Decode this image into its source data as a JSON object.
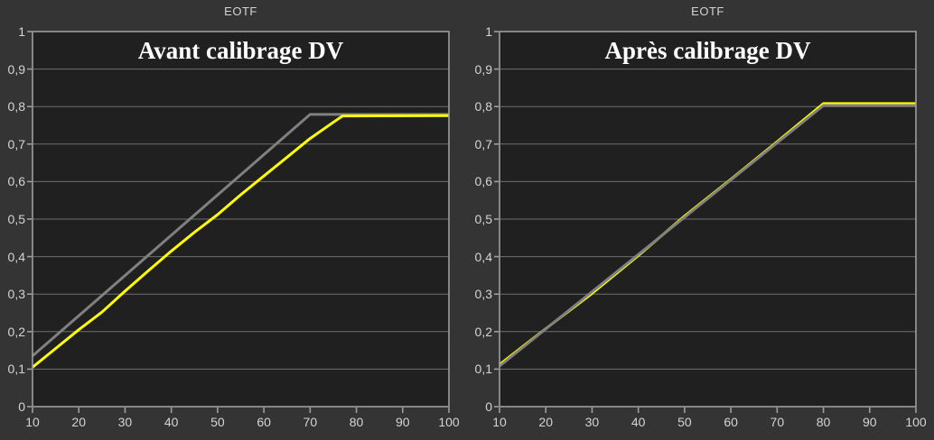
{
  "colors": {
    "background": "#343434",
    "plot_background": "#202020",
    "grid": "#6f6f6f",
    "axis": "#9e9e9e",
    "tick_label": "#d4d4d4",
    "title": "#ffffff",
    "reference_line": "#808080",
    "measured_line": "#ffff00"
  },
  "chart_data": [
    {
      "type": "line",
      "title": "EOTF",
      "inner_title": "Avant calibrage DV",
      "xlim": [
        10,
        100
      ],
      "ylim": [
        0,
        1
      ],
      "x_ticks": [
        10,
        20,
        30,
        40,
        50,
        60,
        70,
        80,
        90,
        100
      ],
      "x_tick_labels": [
        "10",
        "20",
        "30",
        "40",
        "50",
        "60",
        "70",
        "80",
        "90",
        "100"
      ],
      "y_ticks": [
        0,
        0.1,
        0.2,
        0.3,
        0.4,
        0.5,
        0.6,
        0.7,
        0.8,
        0.9,
        1
      ],
      "y_tick_labels": [
        "0",
        "0,1",
        "0,2",
        "0,3",
        "0,4",
        "0,5",
        "0,6",
        "0,7",
        "0,8",
        "0,9",
        "1"
      ],
      "grid": "horizontal",
      "legend": "none",
      "series": [
        {
          "name": "reference-eotf",
          "color": "#808080",
          "width": 3,
          "points": [
            [
              10,
              0.135
            ],
            [
              70,
              0.779
            ],
            [
              100,
              0.779
            ]
          ]
        },
        {
          "name": "measured-eotf",
          "color": "#ffff00",
          "width": 3,
          "points": [
            [
              10,
              0.105
            ],
            [
              15,
              0.155
            ],
            [
              20,
              0.205
            ],
            [
              25,
              0.252
            ],
            [
              30,
              0.308
            ],
            [
              35,
              0.362
            ],
            [
              40,
              0.415
            ],
            [
              45,
              0.465
            ],
            [
              50,
              0.512
            ],
            [
              55,
              0.565
            ],
            [
              60,
              0.615
            ],
            [
              65,
              0.665
            ],
            [
              70,
              0.715
            ],
            [
              75,
              0.758
            ],
            [
              77,
              0.775
            ],
            [
              100,
              0.776
            ]
          ]
        }
      ]
    },
    {
      "type": "line",
      "title": "EOTF",
      "inner_title": "Après calibrage DV",
      "xlim": [
        10,
        100
      ],
      "ylim": [
        0,
        1
      ],
      "x_ticks": [
        10,
        20,
        30,
        40,
        50,
        60,
        70,
        80,
        90,
        100
      ],
      "x_tick_labels": [
        "10",
        "20",
        "30",
        "40",
        "50",
        "60",
        "70",
        "80",
        "90",
        "100"
      ],
      "y_ticks": [
        0,
        0.1,
        0.2,
        0.3,
        0.4,
        0.5,
        0.6,
        0.7,
        0.8,
        0.9,
        1
      ],
      "y_tick_labels": [
        "0",
        "0,1",
        "0,2",
        "0,3",
        "0,4",
        "0,5",
        "0,6",
        "0,7",
        "0,8",
        "0,9",
        "1"
      ],
      "grid": "horizontal",
      "legend": "none",
      "series": [
        {
          "name": "measured-eotf",
          "color": "#ffff00",
          "width": 3,
          "points": [
            [
              10,
              0.112
            ],
            [
              20,
              0.208
            ],
            [
              30,
              0.302
            ],
            [
              40,
              0.403
            ],
            [
              50,
              0.508
            ],
            [
              60,
              0.606
            ],
            [
              70,
              0.706
            ],
            [
              80,
              0.808
            ],
            [
              100,
              0.808
            ]
          ]
        },
        {
          "name": "reference-eotf",
          "color": "#808080",
          "width": 3,
          "points": [
            [
              10,
              0.108
            ],
            [
              80,
              0.803
            ],
            [
              100,
              0.803
            ]
          ]
        }
      ]
    }
  ]
}
